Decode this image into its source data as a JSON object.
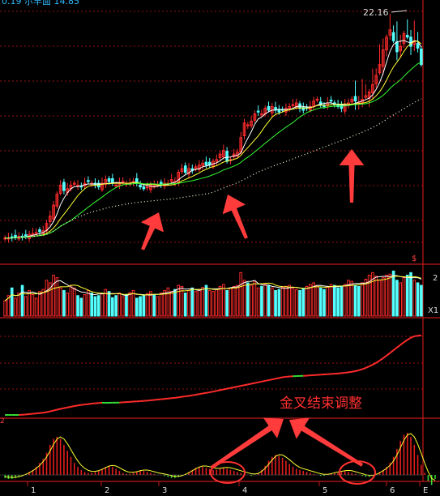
{
  "header": {
    "partial_text": "0.19  尔早面  14.85"
  },
  "price_label": "22.16",
  "annotation_text": "金叉结束调整",
  "volume_marker": "X1",
  "marker_s": "$",
  "right_tick": "2",
  "left_corner": "2",
  "x_axis_labels": [
    "1",
    "2",
    "3",
    "4",
    "5",
    "6",
    "E"
  ],
  "colors": {
    "up": "#ff2b2b",
    "down": "#54ffff",
    "ma_white": "#ffffff",
    "ma_yellow": "#ffff33",
    "ma_green": "#33ff33",
    "ma_dots": "#ffffdd",
    "arrow": "#ff3b3b",
    "grid": "#9a1010",
    "axis": "#c21818",
    "hist_pos": "#e51c1c",
    "hist_neg": "#33dd33",
    "annotation": "#ff3030"
  },
  "chart_data": [
    {
      "type": "candlestick",
      "title": "",
      "max_label": 22.16,
      "note": "daily price bars with moving averages; three arrows mark buy points",
      "close": [
        10.0,
        10.02,
        10.0,
        10.05,
        10.1,
        10.08,
        10.12,
        10.2,
        10.25,
        10.3,
        10.35,
        10.4,
        10.8,
        11.2,
        11.8,
        12.4,
        12.9,
        12.6,
        12.7,
        12.9,
        13.0,
        12.9,
        12.8,
        13.0,
        13.1,
        13.0,
        12.9,
        12.8,
        13.0,
        13.2,
        13.1,
        13.0,
        12.9,
        13.0,
        13.1,
        13.0,
        13.0,
        13.1,
        13.0,
        12.8,
        12.7,
        12.8,
        12.9,
        12.85,
        12.9,
        12.95,
        13.0,
        13.0,
        13.2,
        13.1,
        13.6,
        13.8,
        13.6,
        13.8,
        13.7,
        13.9,
        14.0,
        14.1,
        14.0,
        14.0,
        14.2,
        14.3,
        14.6,
        14.8,
        14.2,
        14.3,
        14.6,
        14.7,
        15.5,
        16.3,
        16.2,
        16.4,
        16.8,
        16.9,
        16.8,
        17.1,
        17.0,
        17.2,
        17.0,
        16.9,
        17.0,
        17.1,
        17.2,
        17.3,
        17.4,
        17.1,
        17.0,
        17.1,
        17.2,
        17.5,
        17.6,
        17.3,
        17.2,
        17.4,
        17.5,
        17.3,
        17.2,
        17.1,
        17.3,
        17.4,
        17.6,
        17.5,
        17.4,
        17.6,
        17.8,
        18.0,
        18.4,
        18.9,
        19.5,
        20.3,
        21.0,
        21.4,
        20.8,
        20.2,
        20.5,
        21.2,
        21.0,
        20.5,
        20.8,
        20.4,
        19.5
      ]
    },
    {
      "type": "bar",
      "title": "",
      "note": "volume histogram with two moving-average lines",
      "values": [
        30,
        40,
        55,
        35,
        45,
        60,
        38,
        50,
        42,
        35,
        48,
        52,
        70,
        65,
        80,
        75,
        55,
        50,
        45,
        60,
        55,
        40,
        35,
        42,
        50,
        45,
        38,
        40,
        44,
        52,
        48,
        36,
        40,
        45,
        38,
        42,
        46,
        50,
        35,
        38,
        40,
        44,
        48,
        42,
        38,
        45,
        50,
        55,
        48,
        52,
        60,
        58,
        45,
        50,
        55,
        48,
        52,
        56,
        60,
        50,
        48,
        52,
        58,
        62,
        50,
        55,
        58,
        60,
        85,
        70,
        65,
        60,
        68,
        55,
        58,
        62,
        60,
        55,
        50,
        52,
        56,
        58,
        60,
        55,
        52,
        50,
        54,
        58,
        62,
        65,
        60,
        55,
        52,
        58,
        62,
        60,
        55,
        58,
        62,
        70,
        68,
        60,
        58,
        65,
        72,
        80,
        85,
        78,
        70,
        75,
        80,
        82,
        88,
        70,
        65,
        75,
        80,
        85,
        70,
        65,
        60
      ]
    },
    {
      "type": "line",
      "title": "",
      "note": "cumulative indicator line; red while rising, green while flat",
      "values": [
        0,
        0,
        0,
        0,
        0,
        0.2,
        0.4,
        0.7,
        1.0,
        1.3,
        1.6,
        1.9,
        2.4,
        3.0,
        3.7,
        4.4,
        5.1,
        5.7,
        6.3,
        6.9,
        7.5,
        8.0,
        8.4,
        8.8,
        9.1,
        9.5,
        9.8,
        10.0,
        10.2,
        10.2,
        10.2,
        10.3,
        10.3,
        10.4,
        10.6,
        10.8,
        11.0,
        11.2,
        11.4,
        11.6,
        11.8,
        12.0,
        12.3,
        12.6,
        12.9,
        13.2,
        13.5,
        13.8,
        14.1,
        14.4,
        14.8,
        15.2,
        15.6,
        16.0,
        16.5,
        17.0,
        17.5,
        18.0,
        18.5,
        19.0,
        19.6,
        20.2,
        20.8,
        21.4,
        22.0,
        22.6,
        23.2,
        23.8,
        24.4,
        25.0,
        25.6,
        26.2,
        26.8,
        27.4,
        28.0,
        28.6,
        29.2,
        29.8,
        30.4,
        31.0,
        31.6,
        32.0,
        32.3,
        32.5,
        32.6,
        32.7,
        32.8,
        33.0,
        33.2,
        33.4,
        33.6,
        33.8,
        34.0,
        34.2,
        34.4,
        34.6,
        34.8,
        35.1,
        35.4,
        35.8,
        36.2,
        36.8,
        37.5,
        38.4,
        39.5,
        40.8,
        42.2,
        43.8,
        45.6,
        47.6,
        49.8,
        52.0,
        54.3,
        56.6,
        58.8,
        61.0,
        63.0,
        64.8,
        66.0,
        66.5,
        66.8
      ]
    },
    {
      "type": "bar",
      "title": "",
      "note": "MACD-style histogram with golden-cross circles",
      "values": [
        -3,
        -4,
        -4,
        -3,
        -2,
        -1,
        1,
        3,
        5,
        8,
        12,
        16,
        22,
        30,
        36,
        38,
        36,
        30,
        24,
        18,
        12,
        8,
        5,
        3,
        2,
        2,
        3,
        4,
        6,
        8,
        9,
        8,
        6,
        4,
        2,
        1,
        1,
        2,
        3,
        4,
        4,
        3,
        2,
        1,
        0,
        0,
        -1,
        -2,
        -3,
        -3,
        -2,
        -1,
        1,
        3,
        5,
        7,
        8,
        8,
        7,
        6,
        5,
        5,
        6,
        7,
        6,
        5,
        4,
        3,
        2,
        1,
        0,
        -1,
        0,
        2,
        5,
        9,
        14,
        18,
        20,
        19,
        17,
        14,
        11,
        8,
        6,
        5,
        4,
        3,
        2,
        1,
        0,
        -1,
        -1,
        0,
        1,
        2,
        2,
        3,
        4,
        3,
        2,
        1,
        0,
        -1,
        -2,
        -2,
        -1,
        1,
        3,
        5,
        8,
        12,
        18,
        26,
        34,
        40,
        42,
        38,
        30,
        20,
        10,
        2,
        -6,
        -10,
        -4
      ]
    }
  ]
}
